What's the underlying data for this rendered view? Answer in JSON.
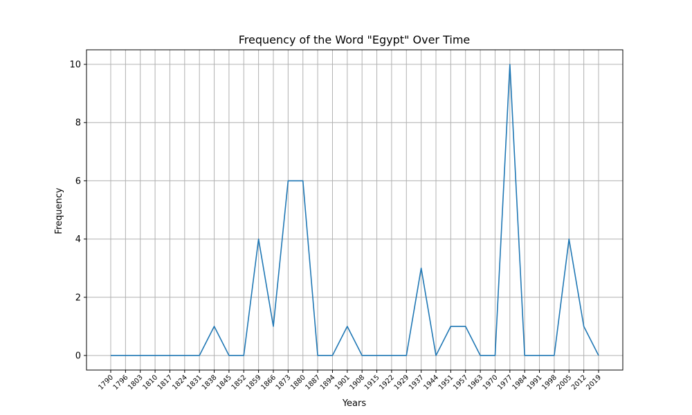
{
  "chart_data": {
    "type": "line",
    "title": "Frequency of the Word \"Egypt\" Over Time",
    "xlabel": "Years",
    "ylabel": "Frequency",
    "ylim": [
      -0.5,
      10.5
    ],
    "y_ticks": [
      0,
      2,
      4,
      6,
      8,
      10
    ],
    "grid": true,
    "legend": "none",
    "colors": {
      "line": "#1f77b4",
      "grid": "#b0b0b0",
      "axes": "#000000"
    },
    "x": [
      "1790",
      "1796",
      "1803",
      "1810",
      "1817",
      "1824",
      "1831",
      "1838",
      "1845",
      "1852",
      "1859",
      "1866",
      "1873",
      "1880",
      "1887",
      "1894",
      "1901",
      "1908",
      "1915",
      "1922",
      "1929",
      "1937",
      "1944",
      "1951",
      "1957",
      "1963",
      "1970",
      "1977",
      "1984",
      "1991",
      "1998",
      "2005",
      "2012",
      "2019"
    ],
    "series": [
      {
        "values": [
          0,
          0,
          0,
          0,
          0,
          0,
          0,
          1,
          0,
          0,
          4,
          1,
          6,
          6,
          0,
          0,
          1,
          0,
          0,
          0,
          0,
          3,
          0,
          1,
          1,
          0,
          0,
          10,
          0,
          0,
          0,
          4,
          1,
          0
        ]
      }
    ]
  }
}
